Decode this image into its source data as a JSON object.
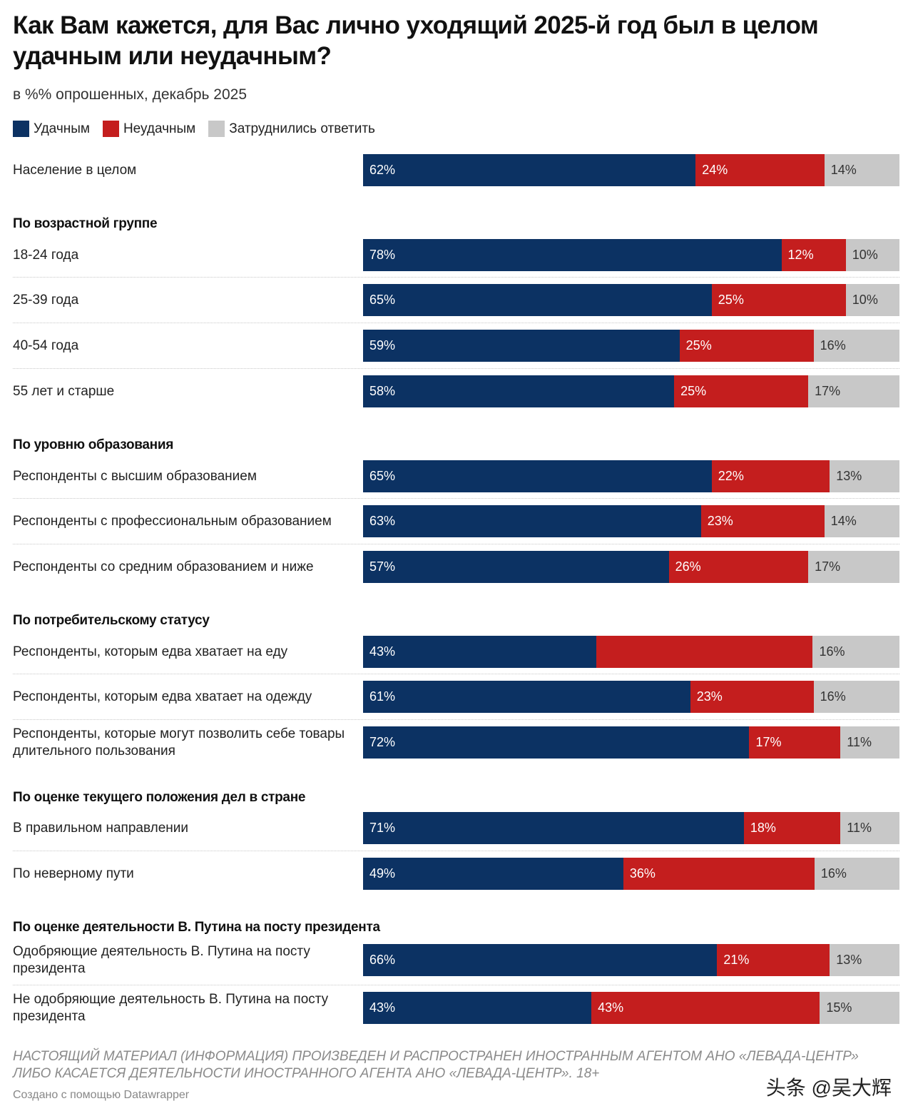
{
  "title": "Как Вам кажется, для Вас лично уходящий 2025-й год был в целом удачным или неудачным?",
  "subtitle": "в %% опрошенных, декабрь 2025",
  "colors": {
    "positive": "#0c3263",
    "negative": "#c41e1e",
    "unsure": "#c8c8c8"
  },
  "legend": [
    "Удачным",
    "Неудачным",
    "Затруднились ответить"
  ],
  "chart_data": {
    "type": "bar",
    "stacked": true,
    "orientation": "horizontal",
    "unit": "%",
    "series_names": [
      "Удачным",
      "Неудачным",
      "Затруднились ответить"
    ],
    "groups": [
      {
        "heading": "",
        "rows": [
          {
            "label": "Население в целом",
            "values": [
              62,
              24,
              14
            ]
          }
        ]
      },
      {
        "heading": "По возрастной группе",
        "rows": [
          {
            "label": "18-24 года",
            "values": [
              78,
              12,
              10
            ]
          },
          {
            "label": "25-39 года",
            "values": [
              65,
              25,
              10
            ]
          },
          {
            "label": "40-54 года",
            "values": [
              59,
              25,
              16
            ]
          },
          {
            "label": "55 лет и старше",
            "values": [
              58,
              25,
              17
            ]
          }
        ]
      },
      {
        "heading": "По уровню образования",
        "rows": [
          {
            "label": "Респонденты с высшим образованием",
            "values": [
              65,
              22,
              13
            ]
          },
          {
            "label": "Респонденты с профессиональным образованием",
            "values": [
              63,
              23,
              14
            ]
          },
          {
            "label": "Респонденты со средним образованием и ниже",
            "values": [
              57,
              26,
              17
            ]
          }
        ]
      },
      {
        "heading": "По потребительскому статусу",
        "rows": [
          {
            "label": "Респонденты, которым едва хватает на еду",
            "values": [
              43,
              40,
              16
            ],
            "hide_negative_label": true
          },
          {
            "label": "Респонденты, которым едва хватает на одежду",
            "values": [
              61,
              23,
              16
            ]
          },
          {
            "label": "Респонденты, которые могут позволить себе товары длительного пользования",
            "values": [
              72,
              17,
              11
            ]
          }
        ]
      },
      {
        "heading": "По оценке текущего положения дел в стране",
        "rows": [
          {
            "label": "В правильном направлении",
            "values": [
              71,
              18,
              11
            ]
          },
          {
            "label": "По неверному пути",
            "values": [
              49,
              36,
              16
            ]
          }
        ]
      },
      {
        "heading": "По оценке деятельности В. Путина на посту президента",
        "rows": [
          {
            "label": "Одобряющие деятельность В. Путина на посту президента",
            "values": [
              66,
              21,
              13
            ]
          },
          {
            "label": "Не одобряющие деятельность В. Путина на посту президента",
            "values": [
              43,
              43,
              15
            ]
          }
        ]
      }
    ]
  },
  "notice": "НАСТОЯЩИЙ МАТЕРИАЛ (ИНФОРМАЦИЯ) ПРОИЗВЕДЕН И РАСПРОСТРАНЕН ИНОСТРАННЫМ АГЕНТОМ АНО «ЛЕВАДА-ЦЕНТР» ЛИБО КАСАЕТСЯ ДЕЯТЕЛЬНОСТИ ИНОСТРАННОГО АГЕНТА АНО «ЛЕВАДА-ЦЕНТР». 18+",
  "credit": "Создано с помощью Datawrapper",
  "watermark": "头条 @吴大辉"
}
